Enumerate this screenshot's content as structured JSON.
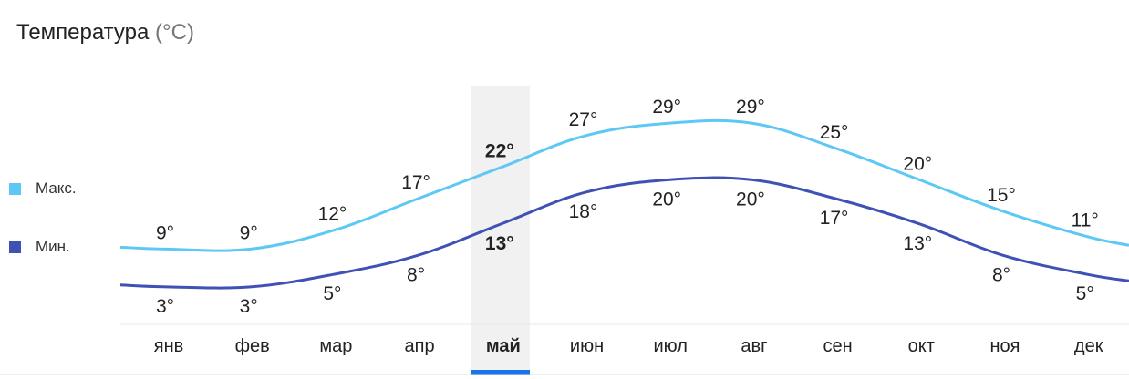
{
  "title": "Температура",
  "unit": "(°C)",
  "legend": [
    {
      "label": "Макс.",
      "color": "#5ec8f5"
    },
    {
      "label": "Мин.",
      "color": "#3f51b5"
    }
  ],
  "chart_data": {
    "type": "line",
    "categories": [
      "янв",
      "фев",
      "мар",
      "апр",
      "май",
      "июн",
      "июл",
      "авг",
      "сен",
      "окт",
      "ноя",
      "дек"
    ],
    "selected_index": 4,
    "series": [
      {
        "name": "Макс.",
        "color": "#5ec8f5",
        "values": [
          9,
          9,
          12,
          17,
          22,
          27,
          29,
          29,
          25,
          20,
          15,
          11
        ],
        "labels": [
          "9°",
          "9°",
          "12°",
          "17°",
          "22°",
          "27°",
          "29°",
          "29°",
          "25°",
          "20°",
          "15°",
          "11°"
        ]
      },
      {
        "name": "Мин.",
        "color": "#3f51b5",
        "values": [
          3,
          3,
          5,
          8,
          13,
          18,
          20,
          20,
          17,
          13,
          8,
          5
        ],
        "labels": [
          "3°",
          "3°",
          "5°",
          "8°",
          "13°",
          "18°",
          "20°",
          "20°",
          "17°",
          "13°",
          "8°",
          "5°"
        ]
      }
    ],
    "ylabel": "°C"
  }
}
